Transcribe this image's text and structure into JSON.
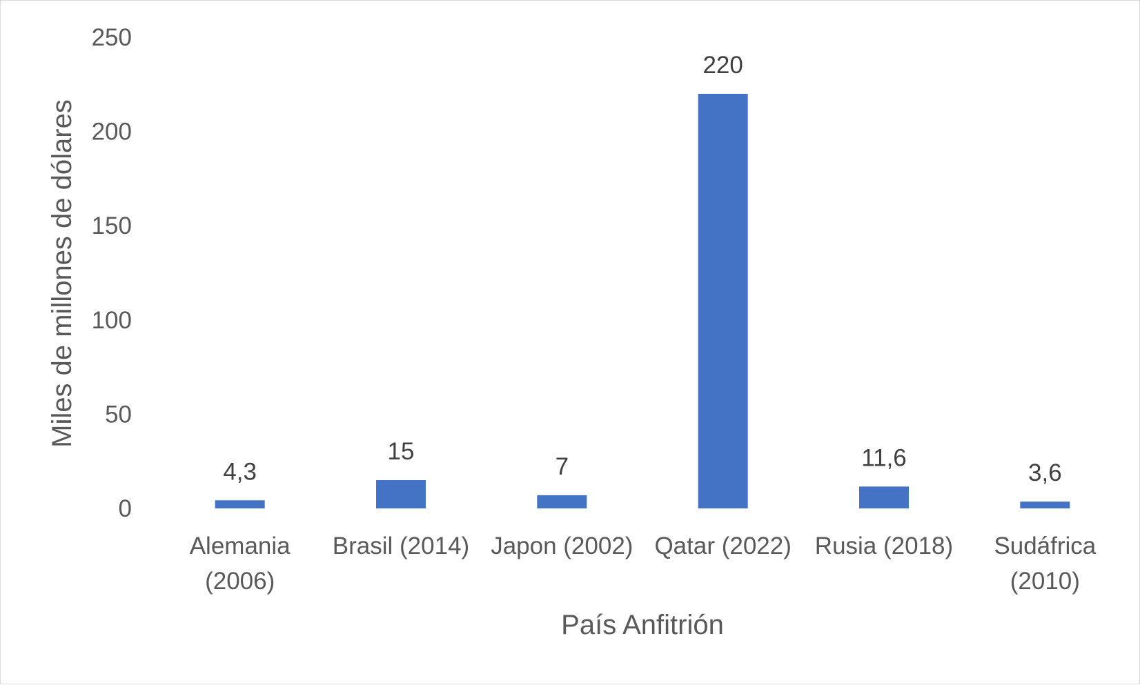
{
  "chart_data": {
    "type": "bar",
    "title": "",
    "xlabel": "País Anfitrión",
    "ylabel": "Miles de millones de dólares",
    "categories": [
      [
        "Alemania",
        "(2006)"
      ],
      [
        "Brasil (2014)"
      ],
      [
        "Japon (2002)"
      ],
      [
        "Qatar (2022)"
      ],
      [
        "Rusia (2018)"
      ],
      [
        "Sudáfrica",
        "(2010)"
      ]
    ],
    "values": [
      4.3,
      15,
      7,
      220,
      11.6,
      3.6
    ],
    "data_labels": [
      "4,3",
      "15",
      "7",
      "220",
      "11,6",
      "3,6"
    ],
    "ylim": [
      0,
      250
    ],
    "yticks": [
      0,
      50,
      100,
      150,
      200,
      250
    ],
    "grid": false,
    "legend": "none",
    "bar_color": "#4472C4"
  }
}
